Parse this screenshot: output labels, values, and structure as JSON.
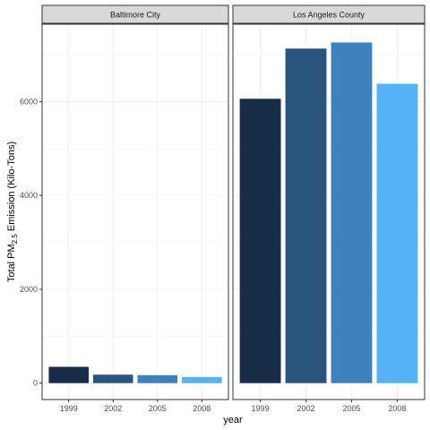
{
  "chart_data": {
    "type": "bar",
    "facets": [
      {
        "label": "Baltimore City",
        "categories": [
          "1999",
          "2002",
          "2005",
          "2008"
        ],
        "values": [
          347,
          180,
          170,
          130
        ]
      },
      {
        "label": "Los Angeles County",
        "categories": [
          "1999",
          "2002",
          "2005",
          "2008"
        ],
        "values": [
          6060,
          7130,
          7260,
          6380
        ]
      }
    ],
    "colors": [
      "#172c47",
      "#29557c",
      "#3e82bb",
      "#55b2f7"
    ],
    "xlabel": "year",
    "ylabel_parts": [
      "Total PM",
      "2.5",
      " Emission (Kilo-Tons)"
    ],
    "ylim": [
      -350,
      7650
    ],
    "yticks": [
      0,
      2000,
      4000,
      6000
    ],
    "grid": true,
    "legend": "none"
  }
}
